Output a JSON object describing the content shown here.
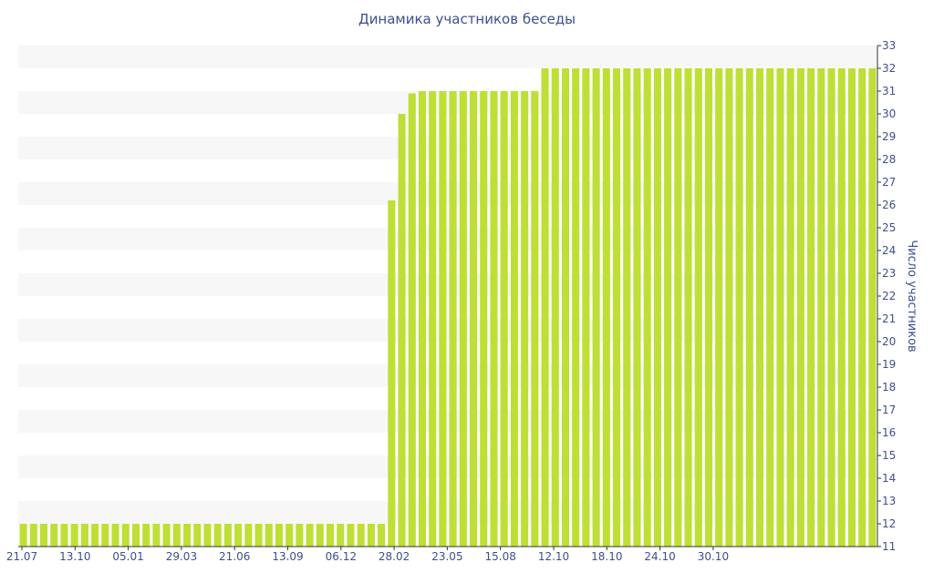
{
  "chart_data": {
    "type": "bar",
    "title": "Динамика участников беседы",
    "ylabel": "Число участников",
    "xlabel": "",
    "ylim": [
      11,
      33
    ],
    "y_ticks": [
      11,
      12,
      13,
      14,
      15,
      16,
      17,
      18,
      19,
      20,
      21,
      22,
      23,
      24,
      25,
      26,
      27,
      28,
      29,
      30,
      31,
      32,
      33
    ],
    "x_tick_labels": [
      "21.07",
      "13.10",
      "05.01",
      "29.03",
      "21.06",
      "13.09",
      "06.12",
      "28.02",
      "23.05",
      "15.08",
      "12.10",
      "18.10",
      "24.10",
      "30.10"
    ],
    "y_axis_position": "right",
    "grid": "alternating horizontal bands",
    "colors": {
      "bar": "#bedf35",
      "band": "#f7f7f7",
      "text": "#3d4f8f",
      "axis": "#333333"
    },
    "values": [
      12,
      12,
      12,
      12,
      12,
      12,
      12,
      12,
      12,
      12,
      12,
      12,
      12,
      12,
      12,
      12,
      12,
      12,
      12,
      12,
      12,
      12,
      12,
      12,
      12,
      12,
      12,
      12,
      12,
      12,
      12,
      12,
      12,
      12,
      12,
      12,
      26.2,
      30,
      30.9,
      31,
      31,
      31,
      31,
      31,
      31,
      31,
      31,
      31,
      31,
      31,
      31,
      32,
      32,
      32,
      32,
      32,
      32,
      32,
      32,
      32,
      32,
      32,
      32,
      32,
      32,
      32,
      32,
      32,
      32,
      32,
      32,
      32,
      32,
      32,
      32,
      32,
      32,
      32,
      32,
      32,
      32,
      32,
      32,
      32
    ]
  }
}
